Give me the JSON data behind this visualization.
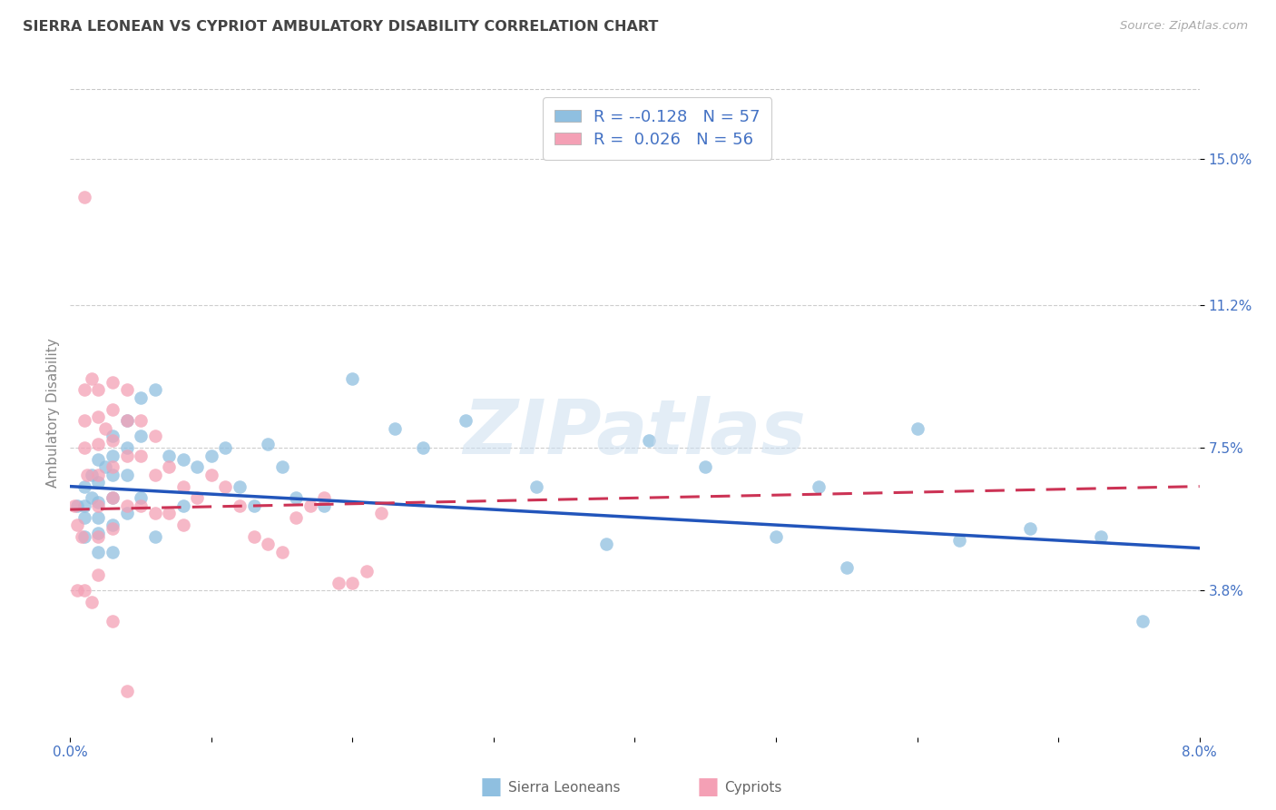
{
  "title": "SIERRA LEONEAN VS CYPRIOT AMBULATORY DISABILITY CORRELATION CHART",
  "source": "Source: ZipAtlas.com",
  "ylabel": "Ambulatory Disability",
  "xmin": 0.0,
  "xmax": 0.08,
  "ymin": 0.0,
  "ymax": 0.168,
  "yticks": [
    0.038,
    0.075,
    0.112,
    0.15
  ],
  "ytick_labels": [
    "3.8%",
    "7.5%",
    "11.2%",
    "15.0%"
  ],
  "xticks": [
    0.0,
    0.01,
    0.02,
    0.03,
    0.04,
    0.05,
    0.06,
    0.07,
    0.08
  ],
  "xtick_labels": [
    "0.0%",
    "",
    "",
    "",
    "",
    "",
    "",
    "",
    "8.0%"
  ],
  "legend_r1": "-0.128",
  "legend_n1": "57",
  "legend_r2": "0.026",
  "legend_n2": "56",
  "blue_color": "#8fbfe0",
  "pink_color": "#f4a0b5",
  "blue_line_color": "#2255bb",
  "pink_line_color": "#cc3355",
  "background_color": "#ffffff",
  "grid_color": "#c8c8c8",
  "title_color": "#444444",
  "axis_label_color": "#4472c4",
  "legend_text_color": "#4472c4",
  "watermark_color": "#ccdff0",
  "sierra_x": [
    0.0005,
    0.001,
    0.001,
    0.001,
    0.001,
    0.0015,
    0.0015,
    0.002,
    0.002,
    0.002,
    0.002,
    0.002,
    0.002,
    0.0025,
    0.003,
    0.003,
    0.003,
    0.003,
    0.003,
    0.003,
    0.004,
    0.004,
    0.004,
    0.004,
    0.005,
    0.005,
    0.005,
    0.006,
    0.006,
    0.007,
    0.008,
    0.008,
    0.009,
    0.01,
    0.011,
    0.012,
    0.013,
    0.014,
    0.015,
    0.016,
    0.018,
    0.02,
    0.023,
    0.025,
    0.028,
    0.033,
    0.038,
    0.041,
    0.045,
    0.05,
    0.053,
    0.055,
    0.06,
    0.063,
    0.068,
    0.073,
    0.076
  ],
  "sierra_y": [
    0.06,
    0.065,
    0.06,
    0.057,
    0.052,
    0.068,
    0.062,
    0.072,
    0.066,
    0.061,
    0.057,
    0.053,
    0.048,
    0.07,
    0.078,
    0.073,
    0.068,
    0.062,
    0.055,
    0.048,
    0.082,
    0.075,
    0.068,
    0.058,
    0.088,
    0.078,
    0.062,
    0.09,
    0.052,
    0.073,
    0.072,
    0.06,
    0.07,
    0.073,
    0.075,
    0.065,
    0.06,
    0.076,
    0.07,
    0.062,
    0.06,
    0.093,
    0.08,
    0.075,
    0.082,
    0.065,
    0.05,
    0.077,
    0.07,
    0.052,
    0.065,
    0.044,
    0.08,
    0.051,
    0.054,
    0.052,
    0.03
  ],
  "cypriot_x": [
    0.0003,
    0.0005,
    0.0008,
    0.001,
    0.001,
    0.001,
    0.001,
    0.0012,
    0.0015,
    0.002,
    0.002,
    0.002,
    0.002,
    0.002,
    0.002,
    0.0025,
    0.003,
    0.003,
    0.003,
    0.003,
    0.003,
    0.003,
    0.004,
    0.004,
    0.004,
    0.004,
    0.005,
    0.005,
    0.005,
    0.006,
    0.006,
    0.006,
    0.007,
    0.007,
    0.008,
    0.008,
    0.009,
    0.01,
    0.011,
    0.012,
    0.013,
    0.014,
    0.015,
    0.016,
    0.017,
    0.018,
    0.019,
    0.02,
    0.021,
    0.022,
    0.0005,
    0.001,
    0.0015,
    0.002,
    0.003,
    0.004
  ],
  "cypriot_y": [
    0.06,
    0.055,
    0.052,
    0.14,
    0.09,
    0.082,
    0.075,
    0.068,
    0.093,
    0.09,
    0.083,
    0.076,
    0.068,
    0.06,
    0.052,
    0.08,
    0.092,
    0.085,
    0.077,
    0.07,
    0.062,
    0.054,
    0.09,
    0.082,
    0.073,
    0.06,
    0.082,
    0.073,
    0.06,
    0.078,
    0.068,
    0.058,
    0.07,
    0.058,
    0.065,
    0.055,
    0.062,
    0.068,
    0.065,
    0.06,
    0.052,
    0.05,
    0.048,
    0.057,
    0.06,
    0.062,
    0.04,
    0.04,
    0.043,
    0.058,
    0.038,
    0.038,
    0.035,
    0.042,
    0.03,
    0.012
  ],
  "trend_sierra_x0": 0.0,
  "trend_sierra_x1": 0.08,
  "trend_sierra_y0": 0.065,
  "trend_sierra_y1": 0.049,
  "trend_cypriot_x0": 0.0,
  "trend_cypriot_x1": 0.08,
  "trend_cypriot_y0": 0.059,
  "trend_cypriot_y1": 0.065
}
